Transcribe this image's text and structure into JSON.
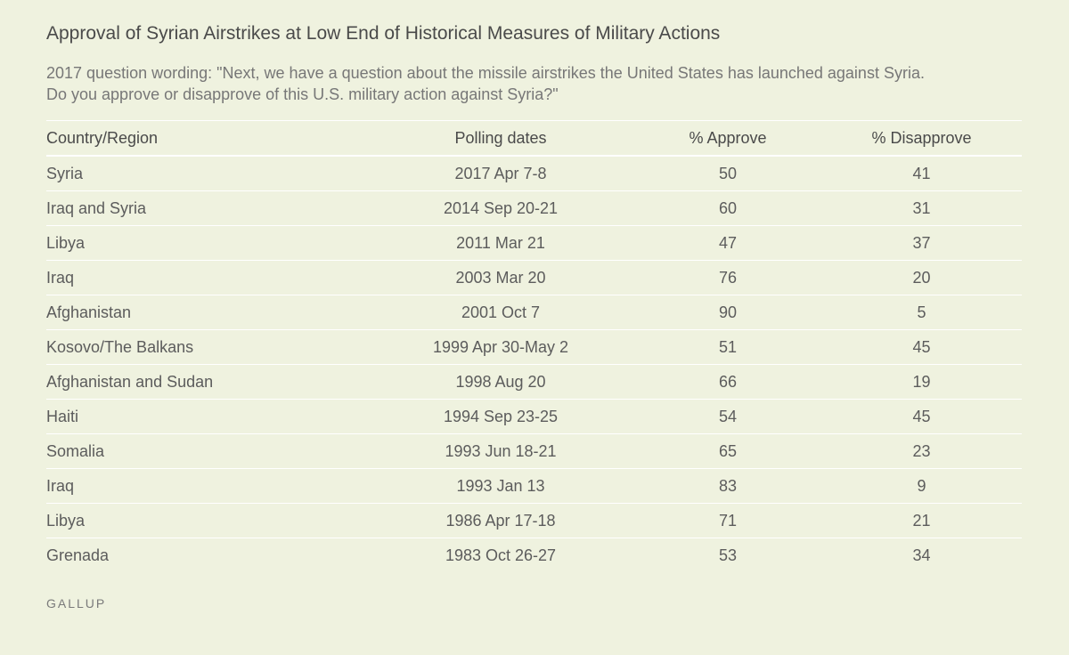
{
  "title": "Approval of Syrian Airstrikes at Low End of Historical Measures of Military Actions",
  "subtitle": "2017 question wording: \"Next, we have a question about the missile airstrikes the United States has launched against Syria. Do you approve or disapprove of this U.S. military action against Syria?\"",
  "source": "GALLUP",
  "chart_data": {
    "type": "table",
    "columns": [
      "Country/Region",
      "Polling dates",
      "% Approve",
      "% Disapprove"
    ],
    "rows": [
      [
        "Syria",
        "2017 Apr 7-8",
        "50",
        "41"
      ],
      [
        "Iraq and Syria",
        "2014 Sep 20-21",
        "60",
        "31"
      ],
      [
        "Libya",
        "2011 Mar 21",
        "47",
        "37"
      ],
      [
        "Iraq",
        "2003 Mar 20",
        "76",
        "20"
      ],
      [
        "Afghanistan",
        "2001 Oct 7",
        "90",
        "5"
      ],
      [
        "Kosovo/The Balkans",
        "1999 Apr 30-May 2",
        "51",
        "45"
      ],
      [
        "Afghanistan and Sudan",
        "1998 Aug 20",
        "66",
        "19"
      ],
      [
        "Haiti",
        "1994 Sep 23-25",
        "54",
        "45"
      ],
      [
        "Somalia",
        "1993 Jun 18-21",
        "65",
        "23"
      ],
      [
        "Iraq",
        "1993 Jan 13",
        "83",
        "9"
      ],
      [
        "Libya",
        "1986 Apr 17-18",
        "71",
        "21"
      ],
      [
        "Grenada",
        "1983 Oct 26-27",
        "53",
        "34"
      ]
    ]
  }
}
